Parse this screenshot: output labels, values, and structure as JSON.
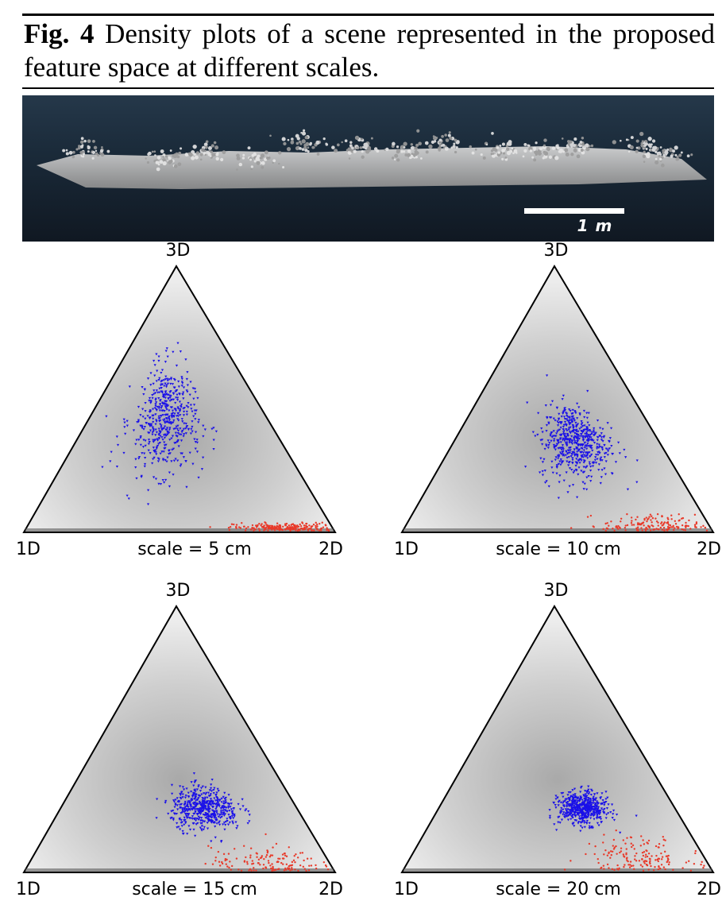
{
  "caption": {
    "fig_label": "Fig. 4",
    "text": "Density plots of a scene represented in the proposed feature space at different scales."
  },
  "scene_image": {
    "scale_bar_label": "1 m"
  },
  "colors": {
    "blue_points": "#1a10e8",
    "red_points": "#e83a2a",
    "triangle_edge": "#000000",
    "scene_sky": "#1d2d3c"
  },
  "panels": [
    {
      "vertex_top": "3D",
      "vertex_left": "1D",
      "vertex_right": "2D",
      "scale_label": "scale = 5 cm"
    },
    {
      "vertex_top": "3D",
      "vertex_left": "1D",
      "vertex_right": "2D",
      "scale_label": "scale = 10 cm"
    },
    {
      "vertex_top": "3D",
      "vertex_left": "1D",
      "vertex_right": "2D",
      "scale_label": "scale = 15 cm"
    },
    {
      "vertex_top": "3D",
      "vertex_left": "1D",
      "vertex_right": "2D",
      "scale_label": "scale = 20 cm"
    }
  ]
}
